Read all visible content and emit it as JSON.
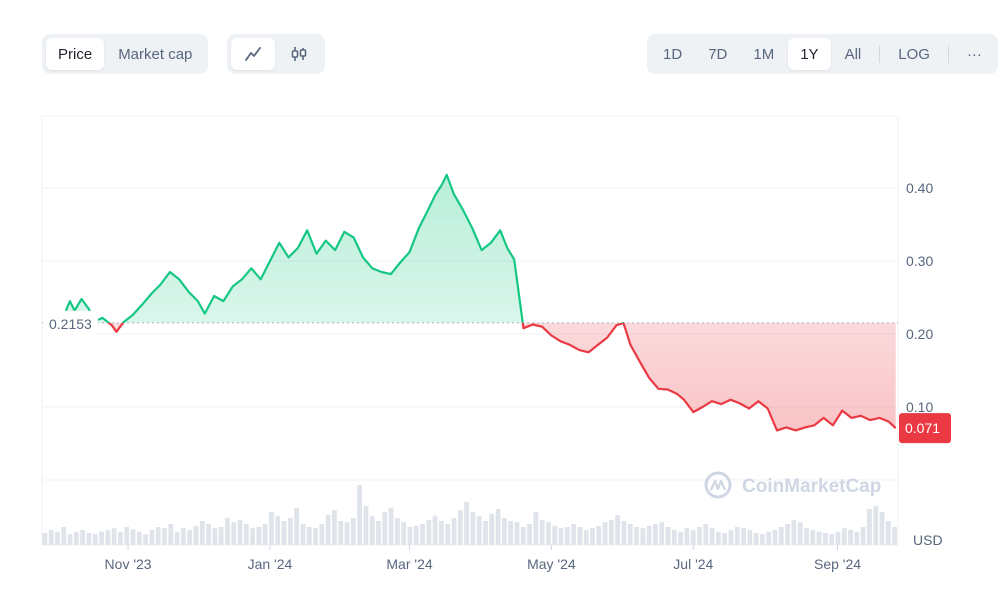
{
  "toolbar": {
    "metric_tabs": [
      {
        "label": "Price",
        "active": true
      },
      {
        "label": "Market cap",
        "active": false
      }
    ],
    "chart_types": [
      {
        "icon": "line-chart-icon",
        "active": true
      },
      {
        "icon": "candlestick-icon",
        "active": false
      }
    ],
    "ranges": [
      {
        "label": "1D",
        "active": false
      },
      {
        "label": "7D",
        "active": false
      },
      {
        "label": "1M",
        "active": false
      },
      {
        "label": "1Y",
        "active": true
      },
      {
        "label": "All",
        "active": false
      }
    ],
    "log_label": "LOG",
    "more_label": "···"
  },
  "chart_data": {
    "type": "area",
    "currency_label": "USD",
    "reference_price": 0.2153,
    "reference_label": "0.2153",
    "current_price_label": "0.071",
    "watermark": "CoinMarketCap",
    "ylim": [
      0,
      0.5
    ],
    "yticks": [
      0.1,
      0.2,
      0.3,
      0.4
    ],
    "ytick_labels": [
      "0.10",
      "0.20",
      "0.30",
      "0.40"
    ],
    "xlim": [
      "2023-09-25",
      "2024-09-27"
    ],
    "xticks": [
      {
        "date": "2023-11-01",
        "label": "Nov '23"
      },
      {
        "date": "2024-01-01",
        "label": "Jan '24"
      },
      {
        "date": "2024-03-01",
        "label": "Mar '24"
      },
      {
        "date": "2024-05-01",
        "label": "May '24"
      },
      {
        "date": "2024-07-01",
        "label": "Jul '24"
      },
      {
        "date": "2024-09-01",
        "label": "Sep '24"
      }
    ],
    "colors": {
      "up": "#16c784",
      "down": "#ea3943"
    },
    "price_series": [
      [
        "2023-09-27",
        0.218
      ],
      [
        "2023-10-01",
        0.225
      ],
      [
        "2023-10-04",
        0.222
      ],
      [
        "2023-10-07",
        0.245
      ],
      [
        "2023-10-09",
        0.232
      ],
      [
        "2023-10-12",
        0.248
      ],
      [
        "2023-10-15",
        0.235
      ],
      [
        "2023-10-18",
        0.218
      ],
      [
        "2023-10-21",
        0.222
      ],
      [
        "2023-10-25",
        0.212
      ],
      [
        "2023-10-27",
        0.203
      ],
      [
        "2023-10-30",
        0.216
      ],
      [
        "2023-11-03",
        0.226
      ],
      [
        "2023-11-07",
        0.24
      ],
      [
        "2023-11-11",
        0.255
      ],
      [
        "2023-11-15",
        0.268
      ],
      [
        "2023-11-19",
        0.285
      ],
      [
        "2023-11-23",
        0.275
      ],
      [
        "2023-11-27",
        0.258
      ],
      [
        "2023-12-01",
        0.245
      ],
      [
        "2023-12-04",
        0.228
      ],
      [
        "2023-12-08",
        0.252
      ],
      [
        "2023-12-12",
        0.245
      ],
      [
        "2023-12-16",
        0.265
      ],
      [
        "2023-12-20",
        0.275
      ],
      [
        "2023-12-24",
        0.29
      ],
      [
        "2023-12-28",
        0.275
      ],
      [
        "2024-01-01",
        0.3
      ],
      [
        "2024-01-05",
        0.325
      ],
      [
        "2024-01-09",
        0.305
      ],
      [
        "2024-01-13",
        0.318
      ],
      [
        "2024-01-17",
        0.342
      ],
      [
        "2024-01-21",
        0.31
      ],
      [
        "2024-01-25",
        0.328
      ],
      [
        "2024-01-29",
        0.315
      ],
      [
        "2024-02-02",
        0.34
      ],
      [
        "2024-02-06",
        0.332
      ],
      [
        "2024-02-10",
        0.305
      ],
      [
        "2024-02-14",
        0.29
      ],
      [
        "2024-02-18",
        0.285
      ],
      [
        "2024-02-22",
        0.282
      ],
      [
        "2024-02-26",
        0.298
      ],
      [
        "2024-03-01",
        0.312
      ],
      [
        "2024-03-05",
        0.345
      ],
      [
        "2024-03-09",
        0.37
      ],
      [
        "2024-03-12",
        0.39
      ],
      [
        "2024-03-15",
        0.405
      ],
      [
        "2024-03-17",
        0.418
      ],
      [
        "2024-03-20",
        0.392
      ],
      [
        "2024-03-24",
        0.37
      ],
      [
        "2024-03-28",
        0.345
      ],
      [
        "2024-04-01",
        0.315
      ],
      [
        "2024-04-05",
        0.325
      ],
      [
        "2024-04-09",
        0.342
      ],
      [
        "2024-04-12",
        0.318
      ],
      [
        "2024-04-15",
        0.302
      ],
      [
        "2024-04-19",
        0.208
      ],
      [
        "2024-04-23",
        0.213
      ],
      [
        "2024-04-27",
        0.21
      ],
      [
        "2024-05-01",
        0.198
      ],
      [
        "2024-05-05",
        0.19
      ],
      [
        "2024-05-09",
        0.185
      ],
      [
        "2024-05-13",
        0.178
      ],
      [
        "2024-05-17",
        0.175
      ],
      [
        "2024-05-21",
        0.185
      ],
      [
        "2024-05-25",
        0.195
      ],
      [
        "2024-05-29",
        0.212
      ],
      [
        "2024-06-01",
        0.215
      ],
      [
        "2024-06-04",
        0.185
      ],
      [
        "2024-06-08",
        0.162
      ],
      [
        "2024-06-12",
        0.14
      ],
      [
        "2024-06-16",
        0.125
      ],
      [
        "2024-06-20",
        0.124
      ],
      [
        "2024-06-24",
        0.118
      ],
      [
        "2024-06-27",
        0.11
      ],
      [
        "2024-07-01",
        0.093
      ],
      [
        "2024-07-05",
        0.1
      ],
      [
        "2024-07-09",
        0.108
      ],
      [
        "2024-07-13",
        0.104
      ],
      [
        "2024-07-17",
        0.11
      ],
      [
        "2024-07-21",
        0.105
      ],
      [
        "2024-07-25",
        0.098
      ],
      [
        "2024-07-29",
        0.108
      ],
      [
        "2024-08-02",
        0.098
      ],
      [
        "2024-08-06",
        0.068
      ],
      [
        "2024-08-10",
        0.072
      ],
      [
        "2024-08-14",
        0.068
      ],
      [
        "2024-08-18",
        0.072
      ],
      [
        "2024-08-22",
        0.075
      ],
      [
        "2024-08-26",
        0.085
      ],
      [
        "2024-08-30",
        0.075
      ],
      [
        "2024-09-03",
        0.095
      ],
      [
        "2024-09-07",
        0.085
      ],
      [
        "2024-09-11",
        0.088
      ],
      [
        "2024-09-15",
        0.082
      ],
      [
        "2024-09-19",
        0.085
      ],
      [
        "2024-09-23",
        0.08
      ],
      [
        "2024-09-26",
        0.071
      ]
    ],
    "volume_series": [
      0.2,
      0.25,
      0.22,
      0.3,
      0.18,
      0.22,
      0.25,
      0.2,
      0.18,
      0.22,
      0.25,
      0.28,
      0.22,
      0.3,
      0.26,
      0.22,
      0.18,
      0.25,
      0.3,
      0.28,
      0.35,
      0.22,
      0.28,
      0.25,
      0.32,
      0.4,
      0.35,
      0.28,
      0.3,
      0.45,
      0.38,
      0.42,
      0.35,
      0.28,
      0.3,
      0.35,
      0.55,
      0.48,
      0.4,
      0.45,
      0.62,
      0.35,
      0.3,
      0.28,
      0.35,
      0.5,
      0.58,
      0.4,
      0.38,
      0.45,
      1.0,
      0.65,
      0.48,
      0.4,
      0.55,
      0.62,
      0.45,
      0.38,
      0.3,
      0.32,
      0.35,
      0.42,
      0.48,
      0.4,
      0.35,
      0.45,
      0.58,
      0.72,
      0.55,
      0.48,
      0.4,
      0.52,
      0.6,
      0.45,
      0.4,
      0.38,
      0.3,
      0.35,
      0.55,
      0.42,
      0.38,
      0.32,
      0.28,
      0.3,
      0.35,
      0.3,
      0.25,
      0.28,
      0.32,
      0.38,
      0.42,
      0.5,
      0.4,
      0.35,
      0.3,
      0.28,
      0.32,
      0.35,
      0.38,
      0.3,
      0.25,
      0.22,
      0.28,
      0.25,
      0.3,
      0.35,
      0.28,
      0.22,
      0.2,
      0.25,
      0.3,
      0.28,
      0.25,
      0.2,
      0.18,
      0.22,
      0.25,
      0.3,
      0.35,
      0.42,
      0.38,
      0.28,
      0.25,
      0.22,
      0.2,
      0.18,
      0.22,
      0.28,
      0.25,
      0.22,
      0.3,
      0.6,
      0.65,
      0.55,
      0.4,
      0.3
    ]
  }
}
